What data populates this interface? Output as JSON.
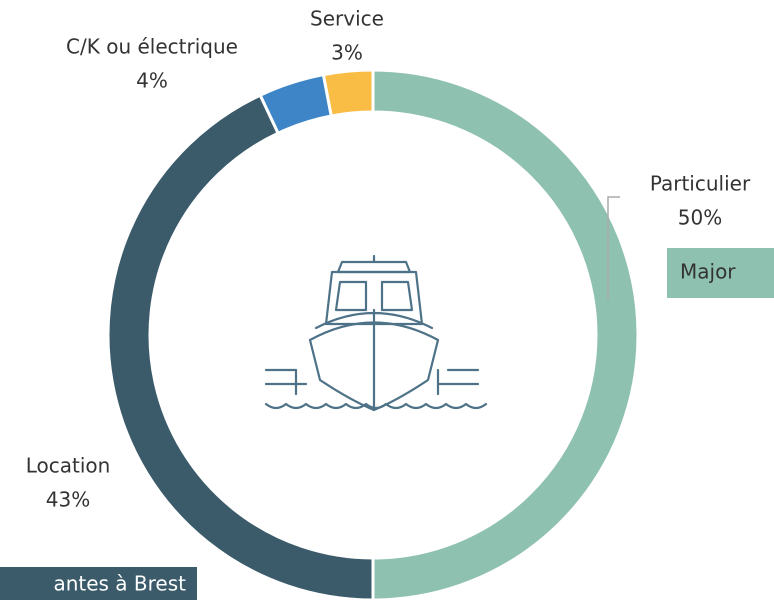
{
  "chart_data": {
    "type": "donut",
    "categories": [
      "Particulier",
      "Location",
      "C/K ou électrique",
      "Service"
    ],
    "values": [
      50,
      43,
      4,
      3
    ],
    "value_labels": [
      "50%",
      "43%",
      "4%",
      "3%"
    ],
    "colors": [
      "#8fc1b0",
      "#3b5b6b",
      "#3d85c6",
      "#f9bc45"
    ],
    "annotations": [
      "Major",
      "antes à Brest"
    ]
  }
}
